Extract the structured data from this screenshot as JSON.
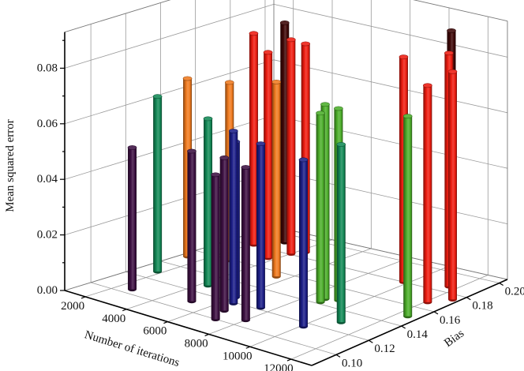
{
  "chart_data": {
    "type": "bar",
    "style": "3d-cylinder",
    "xlabel": "Number of iterations",
    "ylabel": "Bias",
    "zlabel": "Mean squared error",
    "xlim": [
      1000,
      13000
    ],
    "ylim": [
      0.085,
      0.205
    ],
    "zlim": [
      0,
      0.093
    ],
    "x_ticks": [
      "2000",
      "4000",
      "6000",
      "8000",
      "10000",
      "12000"
    ],
    "y_ticks": [
      "0.10",
      "0.12",
      "0.14",
      "0.16",
      "0.18",
      "0.20"
    ],
    "z_ticks": [
      "0.00",
      "0.02",
      "0.04",
      "0.06",
      "0.08"
    ],
    "grid": true,
    "colors": {
      "purple": "#3d1042",
      "teal": "#138a57",
      "orange": "#f07a1e",
      "blue": "#1c1e88",
      "red": "#ee1c10",
      "darkred": "#3d0606",
      "green": "#4cae2a"
    },
    "points": [
      {
        "iterations": 2600,
        "bias": 0.105,
        "mse": 0.051,
        "color": "purple"
      },
      {
        "iterations": 1800,
        "bias": 0.129,
        "mse": 0.063,
        "color": "teal"
      },
      {
        "iterations": 1300,
        "bias": 0.152,
        "mse": 0.064,
        "color": "orange"
      },
      {
        "iterations": 5100,
        "bias": 0.11,
        "mse": 0.054,
        "color": "purple"
      },
      {
        "iterations": 4300,
        "bias": 0.129,
        "mse": 0.06,
        "color": "teal"
      },
      {
        "iterations": 7100,
        "bias": 0.1,
        "mse": 0.052,
        "color": "purple"
      },
      {
        "iterations": 6700,
        "bias": 0.11,
        "mse": 0.055,
        "color": "purple"
      },
      {
        "iterations": 6400,
        "bias": 0.119,
        "mse": 0.062,
        "color": "blue"
      },
      {
        "iterations": 6000,
        "bias": 0.125,
        "mse": 0.056,
        "color": "blue"
      },
      {
        "iterations": 8000,
        "bias": 0.107,
        "mse": 0.055,
        "color": "purple"
      },
      {
        "iterations": 7500,
        "bias": 0.122,
        "mse": 0.059,
        "color": "blue"
      },
      {
        "iterations": 5500,
        "bias": 0.155,
        "mse": 0.07,
        "color": "orange"
      },
      {
        "iterations": 2100,
        "bias": 0.181,
        "mse": 0.076,
        "color": "red"
      },
      {
        "iterations": 3700,
        "bias": 0.171,
        "mse": 0.074,
        "color": "red"
      },
      {
        "iterations": 2800,
        "bias": 0.191,
        "mse": 0.079,
        "color": "darkred"
      },
      {
        "iterations": 4000,
        "bias": 0.181,
        "mse": 0.077,
        "color": "red"
      },
      {
        "iterations": 4300,
        "bias": 0.186,
        "mse": 0.075,
        "color": "red"
      },
      {
        "iterations": 10100,
        "bias": 0.116,
        "mse": 0.06,
        "color": "blue"
      },
      {
        "iterations": 8800,
        "bias": 0.142,
        "mse": 0.068,
        "color": "green"
      },
      {
        "iterations": 8700,
        "bias": 0.146,
        "mse": 0.07,
        "color": "green"
      },
      {
        "iterations": 9200,
        "bias": 0.148,
        "mse": 0.069,
        "color": "green"
      },
      {
        "iterations": 10900,
        "bias": 0.129,
        "mse": 0.064,
        "color": "teal"
      },
      {
        "iterations": 2800,
        "bias": 0.159,
        "mse": 0.064,
        "color": "orange"
      },
      {
        "iterations": 9800,
        "bias": 0.18,
        "mse": 0.081,
        "color": "red"
      },
      {
        "iterations": 12500,
        "bias": 0.15,
        "mse": 0.072,
        "color": "green"
      },
      {
        "iterations": 12100,
        "bias": 0.167,
        "mse": 0.078,
        "color": "red"
      },
      {
        "iterations": 10800,
        "bias": 0.197,
        "mse": 0.088,
        "color": "darkred"
      },
      {
        "iterations": 11600,
        "bias": 0.186,
        "mse": 0.084,
        "color": "red"
      },
      {
        "iterations": 12700,
        "bias": 0.175,
        "mse": 0.082,
        "color": "red"
      }
    ]
  }
}
